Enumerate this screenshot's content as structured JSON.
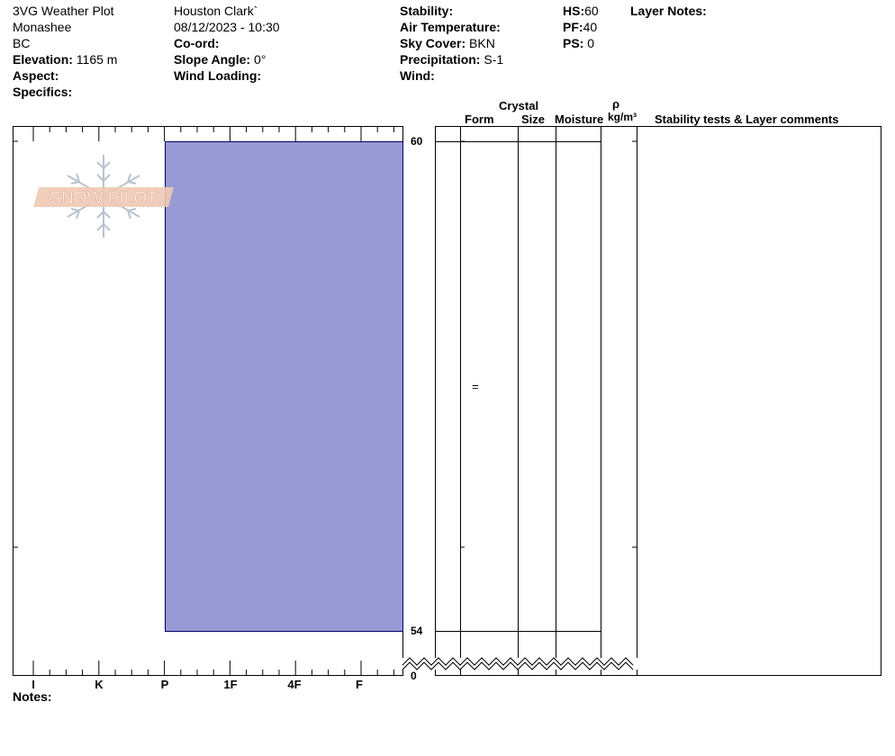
{
  "header": {
    "title": "3VG Weather Plot",
    "location": "Monashee",
    "region": "BC",
    "elevation_label": "Elevation:",
    "elevation_value": "1165 m",
    "aspect_label": "Aspect:",
    "specifics_label": "Specifics:",
    "observer": "Houston Clark`",
    "datetime": "08/12/2023 - 10:30",
    "coord_label": "Co-ord:",
    "slope_label": "Slope Angle:",
    "slope_value": "0°",
    "wind_loading_label": "Wind Loading:",
    "stability_label": "Stability:",
    "air_temp_label": "Air Temperature:",
    "sky_label": "Sky Cover:",
    "sky_value": "BKN",
    "precip_label": "Precipitation:",
    "precip_value": "S-1",
    "wind_label": "Wind:",
    "hs_label": "HS:",
    "hs_value": "60",
    "pf_label": "PF:",
    "pf_value": "40",
    "ps_label": "PS:",
    "ps_value": "0",
    "layer_notes_label": "Layer Notes:"
  },
  "columns": {
    "crystal": "Crystal",
    "form": "Form",
    "size": "Size",
    "moisture": "Moisture",
    "rho": "ρ",
    "density_unit": "kg/m³",
    "stability": "Stability tests & Layer comments"
  },
  "logo_text": "SNOW PILOT",
  "notes_label": "Notes:",
  "chart_data": {
    "type": "bar",
    "title": "",
    "hardness_categories": [
      "I",
      "K",
      "P",
      "1F",
      "4F",
      "F"
    ],
    "depth_ticks": [
      "60",
      "54",
      "0"
    ],
    "layers": [
      {
        "top": 60,
        "bottom": 54,
        "hardness": "P",
        "form": "="
      }
    ],
    "bar_color": "#9999d6"
  }
}
